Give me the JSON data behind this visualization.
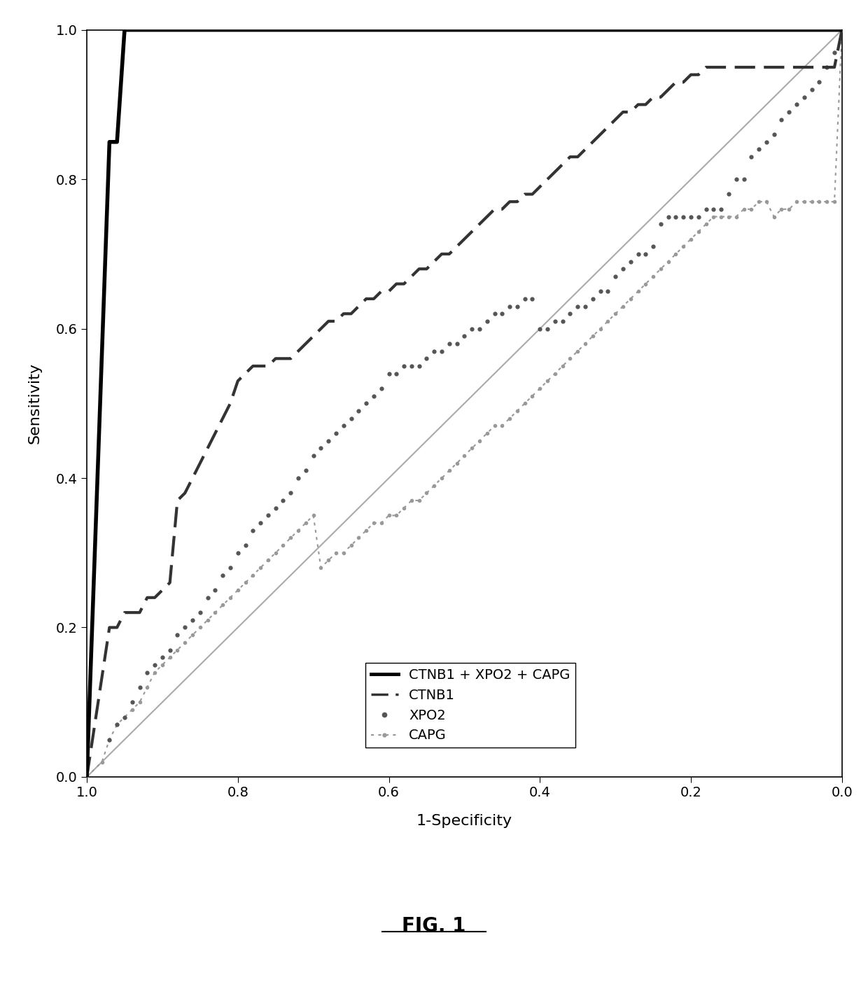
{
  "title": "FIG. 1",
  "xlabel": "1-Specificity",
  "ylabel": "Sensitivity",
  "xlim": [
    1.0,
    0.0
  ],
  "ylim": [
    0.0,
    1.0
  ],
  "xticks": [
    1.0,
    0.8,
    0.6,
    0.4,
    0.2,
    0.0
  ],
  "yticks": [
    0.0,
    0.2,
    0.4,
    0.6,
    0.8,
    1.0
  ],
  "combo_x": [
    1.0,
    0.97,
    0.96,
    0.95,
    0.94,
    0.93,
    0.92,
    0.91,
    0.9,
    0.89,
    0.88,
    0.87,
    0.5,
    0.49,
    0.48,
    0.47,
    0.46,
    0.45,
    0.44,
    0.43,
    0.42,
    0.41,
    0.4,
    0.39,
    0.38,
    0.37,
    0.36,
    0.35,
    0.34,
    0.33,
    0.32,
    0.31,
    0.3,
    0.29,
    0.28,
    0.27,
    0.26,
    0.25,
    0.24,
    0.23,
    0.22,
    0.21,
    0.2,
    0.19,
    0.18,
    0.17,
    0.16,
    0.15,
    0.14,
    0.13,
    0.12,
    0.11,
    0.1,
    0.09,
    0.08,
    0.07,
    0.06,
    0.05,
    0.04,
    0.03,
    0.02,
    0.01,
    0.0
  ],
  "combo_y": [
    0.0,
    0.85,
    0.85,
    1.0,
    1.0,
    1.0,
    1.0,
    1.0,
    1.0,
    1.0,
    1.0,
    1.0,
    1.0,
    1.0,
    1.0,
    1.0,
    1.0,
    1.0,
    1.0,
    1.0,
    1.0,
    1.0,
    1.0,
    1.0,
    1.0,
    1.0,
    1.0,
    1.0,
    1.0,
    1.0,
    1.0,
    1.0,
    1.0,
    1.0,
    1.0,
    1.0,
    1.0,
    1.0,
    1.0,
    1.0,
    1.0,
    1.0,
    1.0,
    1.0,
    1.0,
    1.0,
    1.0,
    1.0,
    1.0,
    1.0,
    1.0,
    1.0,
    1.0,
    1.0,
    1.0,
    1.0,
    1.0,
    1.0,
    1.0,
    1.0,
    1.0,
    1.0,
    1.0
  ],
  "ctnb1_x": [
    1.0,
    0.97,
    0.96,
    0.95,
    0.93,
    0.92,
    0.91,
    0.9,
    0.89,
    0.88,
    0.87,
    0.86,
    0.85,
    0.84,
    0.83,
    0.82,
    0.81,
    0.8,
    0.79,
    0.78,
    0.77,
    0.76,
    0.75,
    0.74,
    0.73,
    0.72,
    0.71,
    0.7,
    0.69,
    0.68,
    0.67,
    0.66,
    0.65,
    0.64,
    0.63,
    0.62,
    0.61,
    0.6,
    0.59,
    0.58,
    0.57,
    0.56,
    0.55,
    0.54,
    0.53,
    0.52,
    0.51,
    0.5,
    0.49,
    0.48,
    0.47,
    0.46,
    0.45,
    0.44,
    0.43,
    0.42,
    0.41,
    0.4,
    0.39,
    0.38,
    0.37,
    0.36,
    0.35,
    0.34,
    0.33,
    0.32,
    0.31,
    0.3,
    0.29,
    0.28,
    0.27,
    0.26,
    0.25,
    0.24,
    0.23,
    0.22,
    0.21,
    0.2,
    0.19,
    0.18,
    0.17,
    0.16,
    0.15,
    0.14,
    0.13,
    0.12,
    0.11,
    0.1,
    0.09,
    0.08,
    0.07,
    0.06,
    0.05,
    0.04,
    0.03,
    0.02,
    0.01,
    0.0
  ],
  "ctnb1_y": [
    0.0,
    0.2,
    0.2,
    0.22,
    0.22,
    0.24,
    0.24,
    0.25,
    0.26,
    0.37,
    0.38,
    0.4,
    0.42,
    0.44,
    0.46,
    0.48,
    0.5,
    0.53,
    0.54,
    0.55,
    0.55,
    0.55,
    0.56,
    0.56,
    0.56,
    0.57,
    0.58,
    0.59,
    0.6,
    0.61,
    0.61,
    0.62,
    0.62,
    0.63,
    0.64,
    0.64,
    0.65,
    0.65,
    0.66,
    0.66,
    0.67,
    0.68,
    0.68,
    0.69,
    0.7,
    0.7,
    0.71,
    0.72,
    0.73,
    0.74,
    0.75,
    0.76,
    0.76,
    0.77,
    0.77,
    0.78,
    0.78,
    0.79,
    0.8,
    0.81,
    0.82,
    0.83,
    0.83,
    0.84,
    0.85,
    0.86,
    0.87,
    0.88,
    0.89,
    0.89,
    0.9,
    0.9,
    0.91,
    0.91,
    0.92,
    0.93,
    0.93,
    0.94,
    0.94,
    0.95,
    0.95,
    0.95,
    0.95,
    0.95,
    0.95,
    0.95,
    0.95,
    0.95,
    0.95,
    0.95,
    0.95,
    0.95,
    0.95,
    0.95,
    0.95,
    0.95,
    0.95,
    1.0
  ],
  "xpo2_x": [
    1.0,
    0.97,
    0.96,
    0.95,
    0.94,
    0.93,
    0.92,
    0.91,
    0.9,
    0.89,
    0.88,
    0.87,
    0.86,
    0.85,
    0.84,
    0.83,
    0.82,
    0.81,
    0.8,
    0.79,
    0.78,
    0.77,
    0.76,
    0.75,
    0.74,
    0.73,
    0.72,
    0.71,
    0.7,
    0.69,
    0.68,
    0.67,
    0.66,
    0.65,
    0.64,
    0.63,
    0.62,
    0.61,
    0.6,
    0.59,
    0.58,
    0.57,
    0.56,
    0.55,
    0.54,
    0.53,
    0.52,
    0.51,
    0.5,
    0.49,
    0.48,
    0.47,
    0.46,
    0.45,
    0.44,
    0.43,
    0.42,
    0.41,
    0.4,
    0.39,
    0.38,
    0.37,
    0.36,
    0.35,
    0.34,
    0.33,
    0.32,
    0.31,
    0.3,
    0.29,
    0.28,
    0.27,
    0.26,
    0.25,
    0.24,
    0.23,
    0.22,
    0.21,
    0.2,
    0.19,
    0.18,
    0.17,
    0.16,
    0.15,
    0.14,
    0.13,
    0.12,
    0.11,
    0.1,
    0.09,
    0.08,
    0.07,
    0.06,
    0.05,
    0.04,
    0.03,
    0.02,
    0.01,
    0.0
  ],
  "xpo2_y": [
    0.0,
    0.05,
    0.07,
    0.08,
    0.1,
    0.12,
    0.14,
    0.15,
    0.16,
    0.17,
    0.19,
    0.2,
    0.21,
    0.22,
    0.24,
    0.25,
    0.27,
    0.28,
    0.3,
    0.31,
    0.33,
    0.34,
    0.35,
    0.36,
    0.37,
    0.38,
    0.4,
    0.41,
    0.43,
    0.44,
    0.45,
    0.46,
    0.47,
    0.48,
    0.49,
    0.5,
    0.51,
    0.52,
    0.54,
    0.54,
    0.55,
    0.55,
    0.55,
    0.56,
    0.57,
    0.57,
    0.58,
    0.58,
    0.59,
    0.6,
    0.6,
    0.61,
    0.62,
    0.62,
    0.63,
    0.63,
    0.64,
    0.64,
    0.6,
    0.6,
    0.61,
    0.61,
    0.62,
    0.63,
    0.63,
    0.64,
    0.65,
    0.65,
    0.67,
    0.68,
    0.69,
    0.7,
    0.7,
    0.71,
    0.74,
    0.75,
    0.75,
    0.75,
    0.75,
    0.75,
    0.76,
    0.76,
    0.76,
    0.78,
    0.8,
    0.8,
    0.83,
    0.84,
    0.85,
    0.86,
    0.88,
    0.89,
    0.9,
    0.91,
    0.92,
    0.93,
    0.95,
    0.97,
    1.0
  ],
  "capg_x": [
    1.0,
    0.98,
    0.97,
    0.96,
    0.95,
    0.94,
    0.93,
    0.92,
    0.91,
    0.9,
    0.89,
    0.88,
    0.87,
    0.86,
    0.85,
    0.84,
    0.83,
    0.82,
    0.81,
    0.8,
    0.79,
    0.78,
    0.77,
    0.76,
    0.75,
    0.74,
    0.73,
    0.72,
    0.71,
    0.7,
    0.69,
    0.68,
    0.67,
    0.66,
    0.65,
    0.64,
    0.63,
    0.62,
    0.61,
    0.6,
    0.59,
    0.58,
    0.57,
    0.56,
    0.55,
    0.54,
    0.53,
    0.52,
    0.51,
    0.5,
    0.49,
    0.48,
    0.47,
    0.46,
    0.45,
    0.44,
    0.43,
    0.42,
    0.41,
    0.4,
    0.39,
    0.38,
    0.37,
    0.36,
    0.35,
    0.34,
    0.33,
    0.32,
    0.31,
    0.3,
    0.29,
    0.28,
    0.27,
    0.26,
    0.25,
    0.24,
    0.23,
    0.22,
    0.21,
    0.2,
    0.19,
    0.18,
    0.17,
    0.16,
    0.15,
    0.14,
    0.13,
    0.12,
    0.11,
    0.1,
    0.09,
    0.08,
    0.07,
    0.06,
    0.05,
    0.04,
    0.03,
    0.02,
    0.01,
    0.0
  ],
  "capg_y": [
    0.0,
    0.02,
    0.05,
    0.07,
    0.08,
    0.09,
    0.1,
    0.12,
    0.14,
    0.15,
    0.16,
    0.17,
    0.18,
    0.19,
    0.2,
    0.21,
    0.22,
    0.23,
    0.24,
    0.25,
    0.26,
    0.27,
    0.28,
    0.29,
    0.3,
    0.31,
    0.32,
    0.33,
    0.34,
    0.35,
    0.28,
    0.29,
    0.3,
    0.3,
    0.31,
    0.32,
    0.33,
    0.34,
    0.34,
    0.35,
    0.35,
    0.36,
    0.37,
    0.37,
    0.38,
    0.39,
    0.4,
    0.41,
    0.42,
    0.43,
    0.44,
    0.45,
    0.46,
    0.47,
    0.47,
    0.48,
    0.49,
    0.5,
    0.51,
    0.52,
    0.53,
    0.54,
    0.55,
    0.56,
    0.57,
    0.58,
    0.59,
    0.6,
    0.61,
    0.62,
    0.63,
    0.64,
    0.65,
    0.66,
    0.67,
    0.68,
    0.69,
    0.7,
    0.71,
    0.72,
    0.73,
    0.74,
    0.75,
    0.75,
    0.75,
    0.75,
    0.76,
    0.76,
    0.77,
    0.77,
    0.75,
    0.76,
    0.76,
    0.77,
    0.77,
    0.77,
    0.77,
    0.77,
    0.77,
    1.0
  ],
  "combo_color": "#000000",
  "ctnb1_color": "#333333",
  "xpo2_color": "#555555",
  "capg_color": "#999999",
  "legend_labels": [
    "CTNB1 + XPO2 + CAPG",
    "CTNB1",
    "XPO2",
    "CAPG"
  ],
  "fig_label": "FIG. 1",
  "background_color": "#ffffff"
}
